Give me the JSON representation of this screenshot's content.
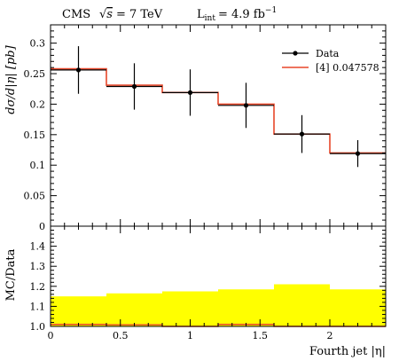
{
  "header": {
    "experiment": "CMS",
    "energy_sqrt": "√",
    "energy_s": "s",
    "energy_rest": "= 7 TeV",
    "lumi_L": "L",
    "lumi_sub": "int",
    "lumi_rest": "= 4.9 fb",
    "lumi_exp": "−1"
  },
  "chart_data": [
    {
      "type": "line",
      "panel": "main",
      "ylabel": "dσ/d|η| [pb]",
      "ylim": [
        0,
        0.33
      ],
      "xlim": [
        0,
        2.4
      ],
      "yticks": [
        0,
        0.05,
        0.1,
        0.15,
        0.2,
        0.25,
        0.3
      ],
      "ytick_labels": [
        "0",
        "0.05",
        "0.1",
        "0.15",
        "0.2",
        "0.25",
        "0.3"
      ],
      "legend": {
        "placement": "top-right",
        "entries": [
          {
            "label": "Data",
            "color": "#000000",
            "style": "marker"
          },
          {
            "label": "[4] 0.047578",
            "color": "#e8472a",
            "style": "line"
          }
        ]
      },
      "series": [
        {
          "name": "Data",
          "color": "#000000",
          "x": [
            0.2,
            0.6,
            1.0,
            1.4,
            1.8,
            2.2
          ],
          "y": [
            0.256,
            0.229,
            0.219,
            0.198,
            0.151,
            0.119
          ],
          "yerr": [
            0.039,
            0.038,
            0.038,
            0.037,
            0.031,
            0.022
          ],
          "xerr": [
            0.2,
            0.2,
            0.2,
            0.2,
            0.2,
            0.2
          ]
        },
        {
          "name": "[4] 0.047578",
          "color": "#e8472a",
          "bins": [
            0,
            0.4,
            0.8,
            1.2,
            1.6,
            2.0,
            2.4
          ],
          "values": [
            0.258,
            0.231,
            0.219,
            0.2,
            0.151,
            0.12
          ]
        }
      ]
    },
    {
      "type": "area",
      "panel": "ratio",
      "xlabel": "Fourth jet |η|",
      "ylabel": "MC/Data",
      "xlim": [
        0,
        2.4
      ],
      "ylim": [
        1.0,
        1.5
      ],
      "yticks": [
        1.0,
        1.1,
        1.2,
        1.3,
        1.4
      ],
      "ytick_labels": [
        "1.0",
        "1.1",
        "1.2",
        "1.3",
        "1.4"
      ],
      "xticks": [
        0,
        0.5,
        1,
        1.5,
        2
      ],
      "xtick_labels": [
        "0",
        "0.5",
        "1",
        "1.5",
        "2"
      ],
      "band_color": "#ffff00",
      "bins": [
        0,
        0.4,
        0.8,
        1.2,
        1.6,
        2.0,
        2.4
      ],
      "band_upper": [
        1.15,
        1.165,
        1.175,
        1.185,
        1.21,
        1.185
      ],
      "band_lower": [
        1.0,
        1.0,
        1.0,
        1.0,
        1.0,
        1.0
      ],
      "ratio_line": [
        1.01,
        1.008,
        1.0,
        1.01,
        1.0,
        1.0
      ],
      "ratio_color": "#e8472a"
    }
  ]
}
